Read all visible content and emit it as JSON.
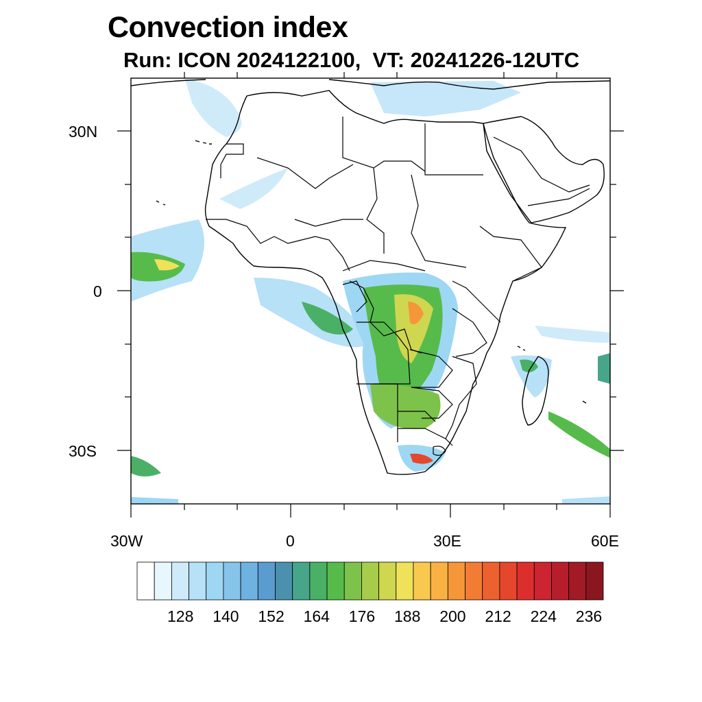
{
  "header": {
    "title": "Convection index",
    "subtitle": "Run: ICON 2024122100,  VT: 20241226-12UTC"
  },
  "map": {
    "projection": "cylindrical equidistant",
    "lon_range": [
      -30,
      60
    ],
    "lat_range": [
      -40,
      40
    ],
    "x_tick_labels": [
      "30W",
      "0",
      "30E",
      "60E"
    ],
    "y_tick_labels": [
      "30N",
      "0",
      "30S"
    ],
    "features": [
      "coastlines",
      "country-borders",
      "convection-index-shading"
    ]
  },
  "colorbar": {
    "labels": [
      "128",
      "140",
      "152",
      "164",
      "176",
      "188",
      "200",
      "212",
      "224",
      "236"
    ],
    "colors": [
      "#ffffff",
      "#e8f6fd",
      "#cfebfa",
      "#b6e1f7",
      "#9dd7f4",
      "#86c4ea",
      "#6eb2e0",
      "#5a9ccf",
      "#4b91ad",
      "#47a58a",
      "#4ab066",
      "#57bb4b",
      "#7dc24a",
      "#a7cc4c",
      "#cfd650",
      "#efe15a",
      "#f9c94f",
      "#f8b142",
      "#f59639",
      "#f27c33",
      "#ec612e",
      "#e4472b",
      "#dc2f2d",
      "#cc2430",
      "#b71e2c",
      "#a11a26",
      "#8a1620"
    ]
  }
}
